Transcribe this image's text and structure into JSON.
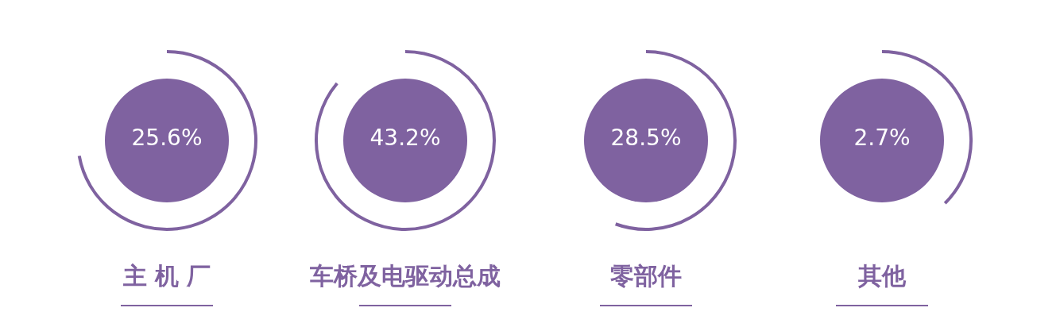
{
  "chart_data": {
    "type": "other",
    "categories": [
      "主 机 厂",
      "车桥及电驱动总成",
      "零部件",
      "其他"
    ],
    "values": [
      25.6,
      43.2,
      28.5,
      2.7
    ],
    "value_labels": [
      "25.6%",
      "43.2%",
      "28.5%",
      "2.7%"
    ],
    "color": "#7f62a0"
  }
}
